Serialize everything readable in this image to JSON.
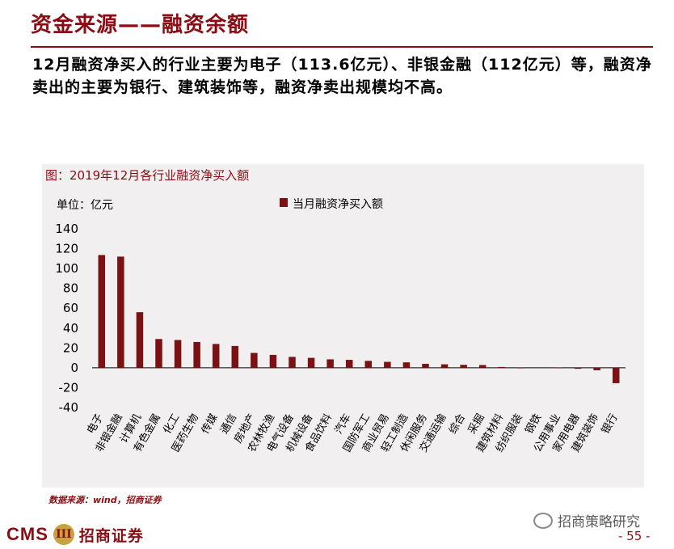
{
  "title": "资金来源——融资余额",
  "summary": "12月融资净买入的行业主要为电子（113.6亿元）、非银金融（112亿元）等，融资净卖出的主要为银行、建筑装饰等，融资净卖出规模均不高。",
  "source": "数据来源：wind，招商证券",
  "brand": {
    "cms": "CMS",
    "emblem": "III",
    "name_cn": "招商证券"
  },
  "watermark": "招商策略研究",
  "page_number": "- 55 -",
  "colors": {
    "accent": "#8B0D13",
    "bar": "#7B1113",
    "panel": "#F1EFEF"
  },
  "chart_data": {
    "type": "bar",
    "title": "图：2019年12月各行业融资净买入额",
    "unit_label": "单位：亿元",
    "legend": "当月融资净买入额",
    "categories": [
      "电子",
      "非银金融",
      "计算机",
      "有色金属",
      "化工",
      "医药生物",
      "传媒",
      "通信",
      "房地产",
      "农林牧渔",
      "电气设备",
      "机械设备",
      "食品饮料",
      "汽车",
      "国防军工",
      "商业贸易",
      "轻工制造",
      "休闲服务",
      "交通运输",
      "综合",
      "采掘",
      "建筑材料",
      "纺织服装",
      "钢铁",
      "公用事业",
      "家用电器",
      "建筑装饰",
      "银行"
    ],
    "values": [
      113.6,
      112,
      56,
      29,
      28,
      26,
      24,
      22,
      15,
      13,
      11,
      10,
      8.5,
      8,
      7,
      6,
      5.5,
      4,
      3.5,
      3,
      2.8,
      0.8,
      0.1,
      0,
      0.2,
      -1,
      -2.5,
      -15.5
    ],
    "yticks": [
      140,
      120,
      100,
      80,
      60,
      40,
      20,
      0,
      -20,
      -40
    ],
    "ylim": [
      -40,
      140
    ]
  }
}
